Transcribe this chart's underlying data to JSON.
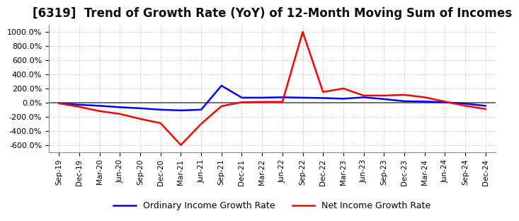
{
  "title": "[6319]  Trend of Growth Rate (YoY) of 12-Month Moving Sum of Incomes",
  "title_fontsize": 12,
  "ylim": [
    -700,
    1100
  ],
  "yticks": [
    -600,
    -400,
    -200,
    0,
    200,
    400,
    600,
    800,
    1000
  ],
  "ytick_labels": [
    "-600.0%",
    "-400.0%",
    "-200.0%",
    "0.0%",
    "200.0%",
    "400.0%",
    "600.0%",
    "800.0%",
    "1000.0%"
  ],
  "background_color": "#ffffff",
  "plot_bg_color": "#ffffff",
  "grid_color": "#aaaaaa",
  "ordinary_color": "#0000ff",
  "net_color": "#ff0000",
  "legend_ordinary": "Ordinary Income Growth Rate",
  "legend_net": "Net Income Growth Rate",
  "x_labels": [
    "Sep-19",
    "Dec-19",
    "Mar-20",
    "Jun-20",
    "Sep-20",
    "Dec-20",
    "Mar-21",
    "Jun-21",
    "Sep-21",
    "Dec-21",
    "Mar-22",
    "Jun-22",
    "Sep-22",
    "Dec-22",
    "Mar-23",
    "Jun-23",
    "Sep-23",
    "Dec-23",
    "Mar-24",
    "Jun-24",
    "Sep-24",
    "Dec-24"
  ],
  "ordinary_values": [
    -10,
    -30,
    -45,
    -65,
    -80,
    -100,
    -110,
    -100,
    240,
    70,
    70,
    75,
    70,
    65,
    55,
    75,
    50,
    20,
    15,
    5,
    -15,
    -45
  ],
  "net_values": [
    -10,
    -60,
    -120,
    -160,
    -230,
    -290,
    -600,
    -300,
    -50,
    5,
    10,
    10,
    1000,
    150,
    200,
    100,
    100,
    110,
    75,
    15,
    -45,
    -90
  ]
}
